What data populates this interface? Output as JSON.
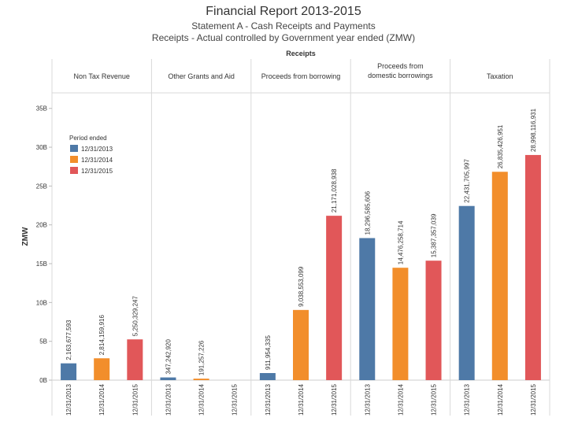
{
  "header": {
    "title": "Financial Report 2013-2015",
    "subtitle1": "Statement A - Cash Receipts and Payments",
    "subtitle2": "Receipts - Actual controlled by Government year ended (ZMW)"
  },
  "colors": {
    "2013": "#4e79a7",
    "2014": "#f28e2b",
    "2015": "#e15759"
  },
  "chart_data": {
    "type": "bar",
    "title": "Financial Report 2013-2015",
    "top_axis_label": "Receipts",
    "ylabel": "ZMW",
    "ylim": [
      0,
      37000000000
    ],
    "yticks": [
      0,
      5000000000,
      10000000000,
      15000000000,
      20000000000,
      25000000000,
      30000000000,
      35000000000
    ],
    "ytick_labels": [
      "0B",
      "5B",
      "10B",
      "15B",
      "20B",
      "25B",
      "30B",
      "35B"
    ],
    "grid": false,
    "legend": {
      "title": "Period ended",
      "position": "left, inside first panel",
      "items": [
        "12/31/2013",
        "12/31/2014",
        "12/31/2015"
      ]
    },
    "periods": [
      "12/31/2013",
      "12/31/2014",
      "12/31/2015"
    ],
    "panels": [
      {
        "name": "Non Tax Revenue",
        "values": [
          2163677593,
          2814159916,
          5250329247
        ],
        "labels": [
          "2,163,677,593",
          "2,814,159,916",
          "5,250,329,247"
        ]
      },
      {
        "name": "Other Grants and Aid",
        "values": [
          347242920,
          191257226,
          null
        ],
        "labels": [
          "347,242,920",
          "191,257,226",
          ""
        ]
      },
      {
        "name": "Proceeds from borrowing",
        "values": [
          911954335,
          9038553099,
          21171028938
        ],
        "labels": [
          "911,954,335",
          "9,038,553,099",
          "21,171,028,938"
        ]
      },
      {
        "name": "Proceeds from domestic borrowings",
        "values": [
          18296585606,
          14476258714,
          15387357039
        ],
        "labels": [
          "18,296,585,606",
          "14,476,258,714",
          "15,387,357,039"
        ]
      },
      {
        "name": "Taxation",
        "values": [
          22431705997,
          26835426951,
          28998116931
        ],
        "labels": [
          "22,431,705,997",
          "26,835,426,951",
          "28,998,116,931"
        ]
      }
    ]
  }
}
